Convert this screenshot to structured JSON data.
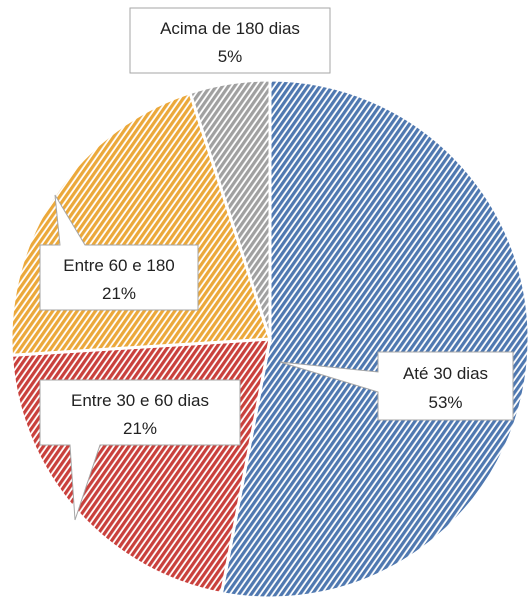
{
  "chart_data": {
    "type": "pie",
    "categories": [
      "Até 30 dias",
      "Entre 30 e 60 dias",
      "Entre 60 e 180",
      "Acima de 180 dias"
    ],
    "values": [
      53,
      21,
      21,
      5
    ],
    "value_labels": [
      "53%",
      "21%",
      "21%",
      "5%"
    ],
    "colors": [
      "#4f78b0",
      "#c9403c",
      "#eba83a",
      "#a0a0a0"
    ]
  }
}
